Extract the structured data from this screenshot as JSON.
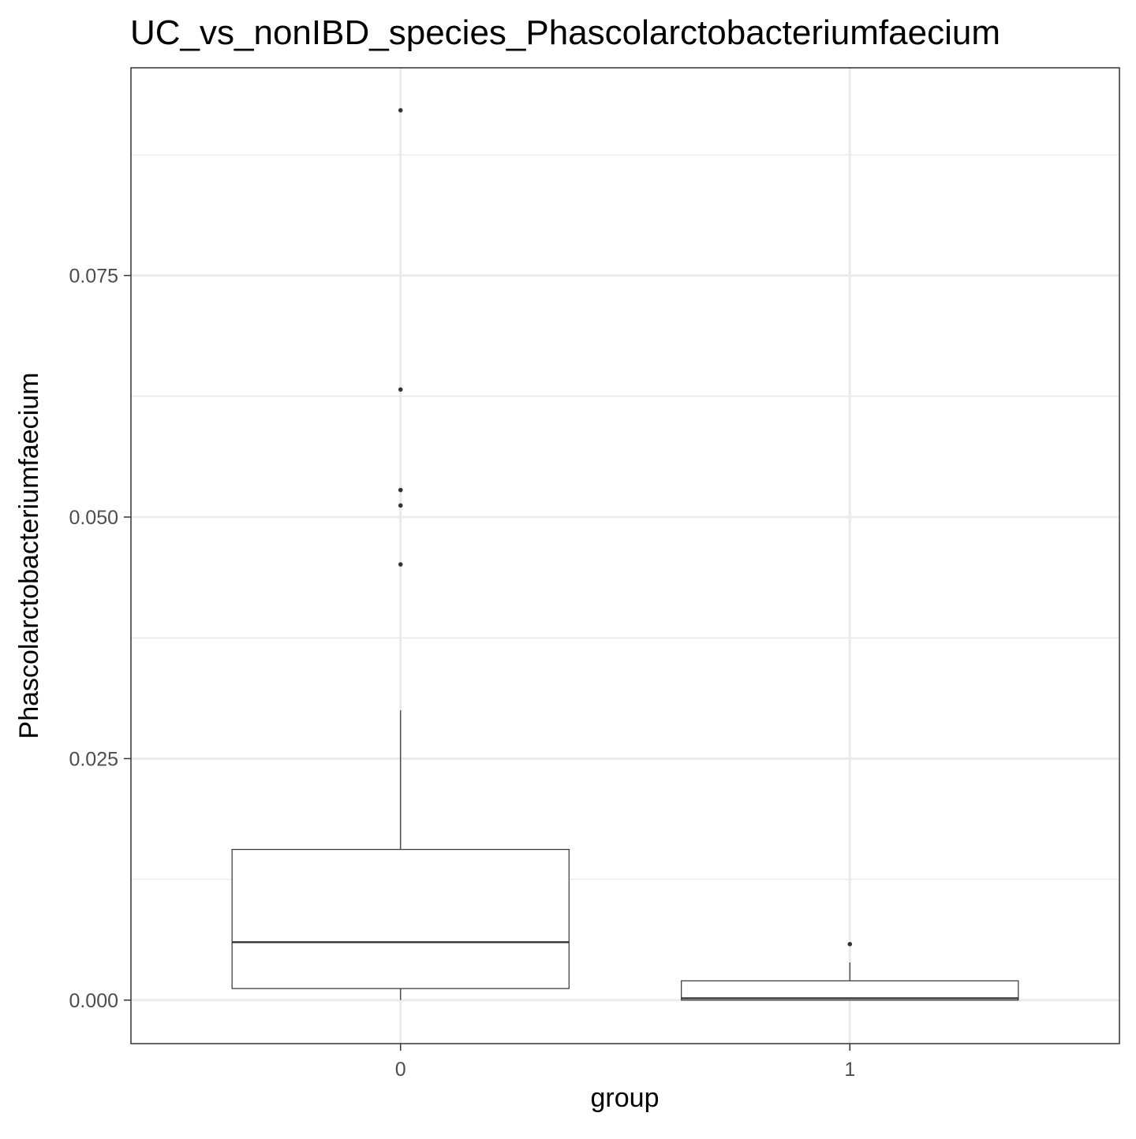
{
  "chart_data": {
    "type": "box",
    "title": "UC_vs_nonIBD_species_Phascolarctobacteriumfaecium",
    "xlabel": "group",
    "ylabel": "Phascolarctobacteriumfaecium",
    "categories": [
      "0",
      "1"
    ],
    "ylim": [
      -0.0045,
      0.0965
    ],
    "y_ticks": [
      0.0,
      0.025,
      0.05,
      0.075
    ],
    "y_tick_labels": [
      "0.000",
      "0.025",
      "0.050",
      "0.075"
    ],
    "grid": true,
    "boxes": [
      {
        "group": "0",
        "whisker_low": 0.0,
        "q1": 0.0012,
        "median": 0.006,
        "q3": 0.0156,
        "whisker_high": 0.03,
        "outliers": [
          0.0921,
          0.0632,
          0.0528,
          0.0512,
          0.0451
        ]
      },
      {
        "group": "1",
        "whisker_low": 0.0,
        "q1": 0.0,
        "median": 0.0002,
        "q3": 0.002,
        "whisker_high": 0.0039,
        "outliers": [
          0.0058
        ]
      }
    ]
  }
}
